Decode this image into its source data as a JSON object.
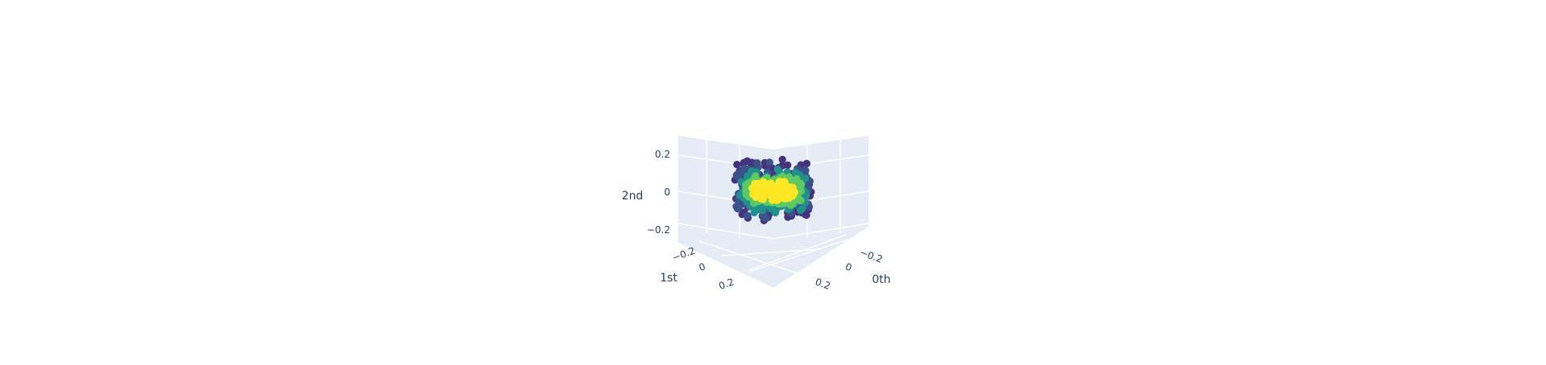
{
  "chart_data": {
    "type": "scatter",
    "dimension": "3d",
    "title": "",
    "axes": {
      "x": {
        "label": "0th",
        "ticks": [
          "−0.2",
          "0",
          "0.2"
        ],
        "tick_values": [
          -0.2,
          0,
          0.2
        ],
        "range": [
          -0.3,
          0.3
        ]
      },
      "y": {
        "label": "1st",
        "ticks": [
          "−0.2",
          "0",
          "0.2"
        ],
        "tick_values": [
          -0.2,
          0,
          0.2
        ],
        "range": [
          -0.3,
          0.3
        ]
      },
      "z": {
        "label": "2nd",
        "ticks": [
          "0.2",
          "0",
          "−0.2"
        ],
        "tick_values": [
          0.2,
          0,
          -0.2
        ],
        "range": [
          -0.3,
          0.3
        ]
      }
    },
    "grid": true,
    "colorscale": "Viridis",
    "colorscale_stops": [
      "#440154",
      "#3b528b",
      "#21918c",
      "#5ec962",
      "#fde725"
    ],
    "series": [
      {
        "ring": 1,
        "color": "#fde725",
        "radius": 0.12,
        "flatten": 0.25
      },
      {
        "ring": 2,
        "color": "#5ec962",
        "radius": 0.16,
        "flatten": 0.45
      },
      {
        "ring": 3,
        "color": "#21918c",
        "radius": 0.19,
        "flatten": 0.7
      },
      {
        "ring": 4,
        "color": "#3b528b",
        "radius": 0.21,
        "flatten": 0.95
      },
      {
        "ring": 5,
        "color": "#46327e",
        "radius": 0.22,
        "flatten": 1.1
      }
    ]
  }
}
